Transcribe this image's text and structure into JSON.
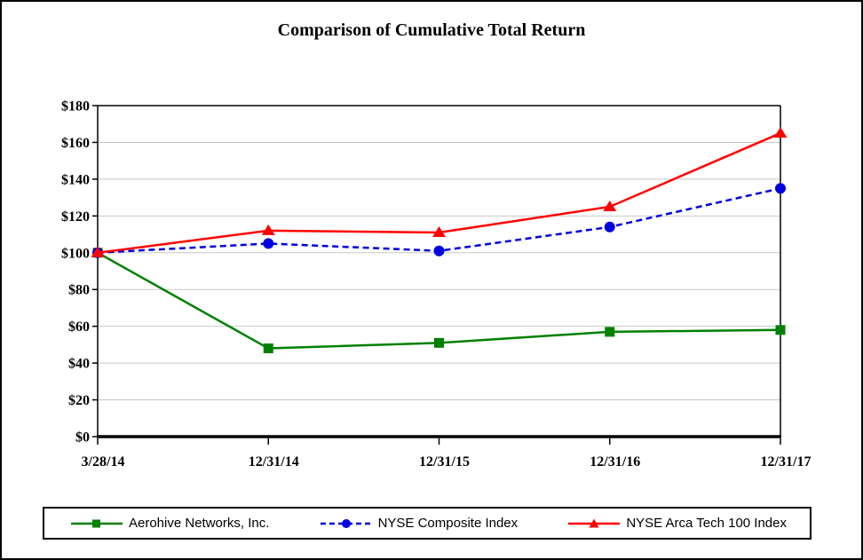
{
  "chart_data": {
    "type": "line",
    "title": "Comparison of Cumulative Total Return",
    "categories": [
      "3/28/14",
      "12/31/14",
      "12/31/15",
      "12/31/16",
      "12/31/17"
    ],
    "series": [
      {
        "name": "Aerohive Networks, Inc.",
        "values": [
          100,
          48,
          51,
          57,
          58
        ],
        "color": "#008000",
        "marker": "square",
        "line_style": "solid"
      },
      {
        "name": "NYSE Composite Index",
        "values": [
          100,
          105,
          101,
          114,
          135
        ],
        "color": "#0000E0",
        "marker": "circle",
        "line_style": "dashed"
      },
      {
        "name": "NYSE Arca Tech 100 Index",
        "values": [
          100,
          112,
          111,
          125,
          165
        ],
        "color": "#FF0000",
        "marker": "triangle",
        "line_style": "solid"
      }
    ],
    "ylim": [
      0,
      180
    ],
    "y_tick_step": 20,
    "y_tick_labels": [
      "$0",
      "$20",
      "$40",
      "$60",
      "$80",
      "$100",
      "$120",
      "$140",
      "$160",
      "$180"
    ],
    "grid": "horizontal",
    "gridline_color": "#C8C8C8",
    "axis_color": "#000000",
    "legend_position": "bottom"
  }
}
